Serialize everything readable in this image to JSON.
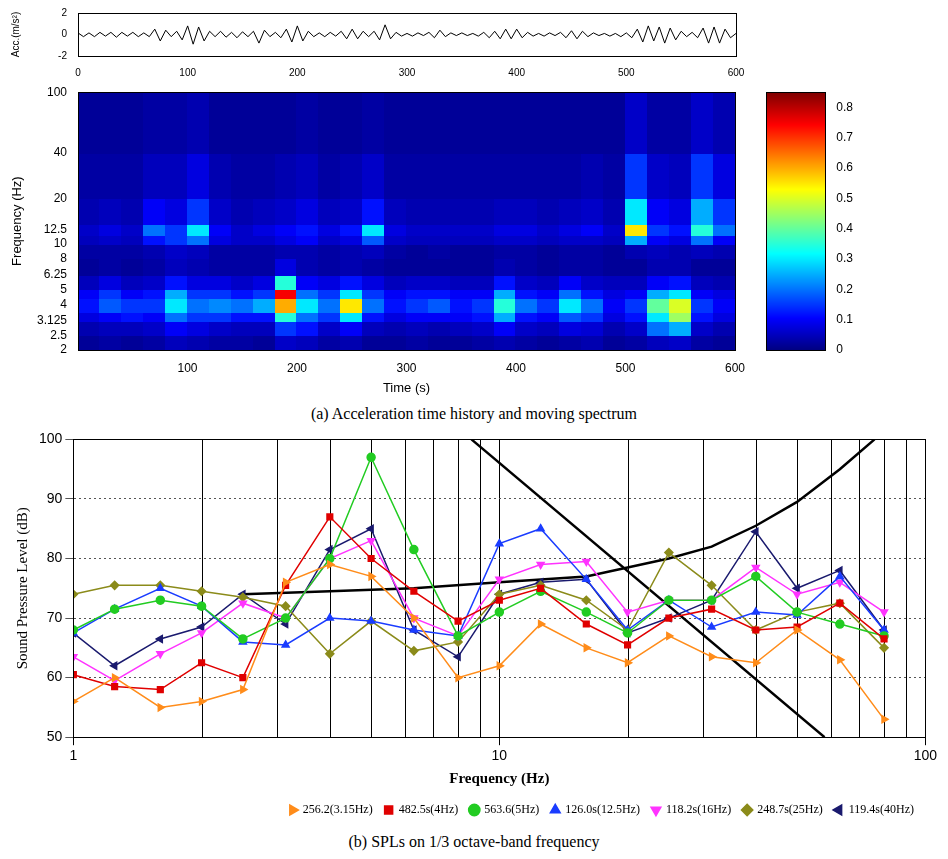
{
  "chart_data": [
    {
      "type": "line",
      "ylabel": "Acc.(m/s²)",
      "color": "#000000",
      "grid": false,
      "xlim": [
        0,
        600
      ],
      "xticks": [
        0,
        100,
        200,
        300,
        400,
        500,
        600
      ],
      "ylim": [
        -2,
        2
      ],
      "yticks": [
        -2,
        0,
        2
      ],
      "x": [
        0,
        5,
        10,
        15,
        20,
        25,
        30,
        35,
        40,
        45,
        50,
        55,
        60,
        65,
        70,
        75,
        80,
        85,
        90,
        95,
        100,
        105,
        110,
        115,
        120,
        125,
        130,
        135,
        140,
        145,
        150,
        155,
        160,
        165,
        170,
        175,
        180,
        185,
        190,
        195,
        200,
        205,
        210,
        215,
        220,
        225,
        230,
        235,
        240,
        245,
        250,
        255,
        260,
        265,
        270,
        275,
        280,
        285,
        290,
        295,
        300,
        305,
        310,
        315,
        320,
        325,
        330,
        335,
        340,
        345,
        350,
        355,
        360,
        365,
        370,
        375,
        380,
        385,
        390,
        395,
        400,
        405,
        410,
        415,
        420,
        425,
        430,
        435,
        440,
        445,
        450,
        455,
        460,
        465,
        470,
        475,
        480,
        485,
        490,
        495,
        500,
        505,
        510,
        515,
        520,
        525,
        530,
        535,
        540,
        545,
        550,
        555,
        560,
        565,
        570,
        575,
        580,
        585,
        590,
        595,
        600
      ],
      "values": [
        0.15,
        -0.2,
        0.15,
        -0.2,
        0.2,
        -0.15,
        0.2,
        -0.25,
        0.2,
        -0.15,
        0.2,
        -0.2,
        0.15,
        -0.2,
        0.5,
        -0.6,
        0.4,
        -0.2,
        0.3,
        -0.5,
        0.8,
        -0.9,
        0.7,
        -0.6,
        0.3,
        -0.2,
        0.3,
        -0.25,
        0.2,
        -0.3,
        0.25,
        -0.2,
        0.3,
        -0.8,
        0.4,
        -0.2,
        0.2,
        -0.3,
        0.5,
        -0.7,
        0.8,
        -0.6,
        0.3,
        -0.2,
        0.15,
        -0.2,
        0.2,
        -0.15,
        0.3,
        -0.4,
        0.5,
        -0.4,
        0.3,
        -0.2,
        0.3,
        -0.5,
        0.9,
        -0.4,
        0.2,
        -0.15,
        0.1,
        -0.15,
        0.15,
        -0.1,
        0.2,
        -0.3,
        0.4,
        -0.2,
        0.15,
        -0.1,
        0.15,
        -0.1,
        0.1,
        -0.15,
        0.2,
        -0.3,
        0.3,
        -0.4,
        0.5,
        -0.4,
        0.5,
        -0.3,
        0.2,
        -0.15,
        0.1,
        -0.15,
        0.15,
        -0.1,
        0.2,
        -0.3,
        0.35,
        -0.4,
        0.3,
        -0.2,
        0.15,
        -0.1,
        0.1,
        -0.15,
        0.1,
        -0.2,
        0.15,
        -0.3,
        0.5,
        -0.7,
        0.8,
        -0.6,
        0.7,
        -0.8,
        0.6,
        -0.5,
        0.3,
        -0.2,
        0.2,
        -0.3,
        0.6,
        -0.8,
        0.7,
        -0.8,
        0.5,
        -0.3,
        0.1
      ]
    },
    {
      "type": "heatmap",
      "title": "(a) Acceleration time history and moving spectrum",
      "xlabel": "Time (s)",
      "ylabel": "Frequency (Hz)",
      "log": "y",
      "grid": false,
      "xlim": [
        0,
        600
      ],
      "xticks": [
        100,
        200,
        300,
        400,
        500,
        600
      ],
      "ylim": [
        2,
        100
      ],
      "yticks": [
        2,
        2.5,
        3.125,
        4,
        5,
        6.25,
        8,
        10,
        12.5,
        20,
        40,
        100
      ],
      "x_edges": [
        0,
        20,
        40,
        60,
        80,
        100,
        120,
        140,
        160,
        180,
        200,
        220,
        240,
        260,
        280,
        300,
        320,
        340,
        360,
        380,
        400,
        420,
        440,
        460,
        480,
        500,
        520,
        540,
        560,
        580,
        600
      ],
      "y_edges": [
        2,
        2.5,
        3.125,
        3.6,
        4.4,
        5,
        6.25,
        8,
        10,
        11.5,
        13.5,
        20,
        40,
        100
      ],
      "cells": [
        [
          0.02,
          0.03,
          0.02,
          0.03,
          0.05,
          0.04,
          0.03,
          0.03,
          0.02,
          0.06,
          0.05,
          0.03,
          0.04,
          0.02,
          0.02,
          0.03,
          0.02,
          0.02,
          0.03,
          0.04,
          0.03,
          0.02,
          0.03,
          0.04,
          0.02,
          0.03,
          0.05,
          0.06,
          0.03,
          0.02
        ],
        [
          0.04,
          0.05,
          0.05,
          0.06,
          0.1,
          0.08,
          0.06,
          0.05,
          0.05,
          0.15,
          0.12,
          0.06,
          0.1,
          0.05,
          0.04,
          0.05,
          0.04,
          0.05,
          0.06,
          0.1,
          0.06,
          0.05,
          0.08,
          0.07,
          0.04,
          0.06,
          0.2,
          0.25,
          0.06,
          0.04
        ],
        [
          0.08,
          0.1,
          0.12,
          0.1,
          0.2,
          0.15,
          0.15,
          0.12,
          0.12,
          0.35,
          0.2,
          0.15,
          0.3,
          0.12,
          0.08,
          0.1,
          0.1,
          0.1,
          0.12,
          0.25,
          0.12,
          0.1,
          0.18,
          0.15,
          0.08,
          0.12,
          0.3,
          0.45,
          0.12,
          0.08
        ],
        [
          0.12,
          0.18,
          0.15,
          0.15,
          0.3,
          0.2,
          0.22,
          0.2,
          0.25,
          0.6,
          0.3,
          0.2,
          0.55,
          0.2,
          0.12,
          0.15,
          0.18,
          0.12,
          0.15,
          0.35,
          0.2,
          0.15,
          0.3,
          0.2,
          0.1,
          0.15,
          0.4,
          0.5,
          0.15,
          0.1
        ],
        [
          0.1,
          0.15,
          0.1,
          0.12,
          0.25,
          0.15,
          0.15,
          0.12,
          0.15,
          0.75,
          0.2,
          0.15,
          0.3,
          0.15,
          0.1,
          0.12,
          0.12,
          0.1,
          0.1,
          0.25,
          0.12,
          0.1,
          0.2,
          0.12,
          0.08,
          0.1,
          0.25,
          0.3,
          0.1,
          0.08
        ],
        [
          0.05,
          0.08,
          0.05,
          0.06,
          0.12,
          0.08,
          0.08,
          0.06,
          0.08,
          0.35,
          0.1,
          0.08,
          0.12,
          0.08,
          0.05,
          0.06,
          0.06,
          0.05,
          0.05,
          0.12,
          0.06,
          0.05,
          0.1,
          0.06,
          0.05,
          0.05,
          0.1,
          0.12,
          0.05,
          0.04
        ],
        [
          0.02,
          0.03,
          0.02,
          0.03,
          0.05,
          0.04,
          0.03,
          0.03,
          0.03,
          0.08,
          0.04,
          0.03,
          0.04,
          0.03,
          0.02,
          0.02,
          0.02,
          0.02,
          0.02,
          0.04,
          0.03,
          0.02,
          0.03,
          0.03,
          0.02,
          0.02,
          0.04,
          0.04,
          0.02,
          0.02
        ],
        [
          0.03,
          0.03,
          0.03,
          0.04,
          0.06,
          0.05,
          0.03,
          0.03,
          0.03,
          0.04,
          0.04,
          0.03,
          0.04,
          0.05,
          0.03,
          0.02,
          0.03,
          0.02,
          0.02,
          0.03,
          0.03,
          0.02,
          0.03,
          0.03,
          0.02,
          0.04,
          0.05,
          0.04,
          0.05,
          0.04
        ],
        [
          0.05,
          0.06,
          0.05,
          0.12,
          0.15,
          0.2,
          0.08,
          0.06,
          0.06,
          0.08,
          0.1,
          0.06,
          0.08,
          0.18,
          0.06,
          0.05,
          0.05,
          0.05,
          0.05,
          0.06,
          0.06,
          0.05,
          0.06,
          0.06,
          0.05,
          0.25,
          0.1,
          0.08,
          0.2,
          0.1
        ],
        [
          0.06,
          0.08,
          0.06,
          0.2,
          0.15,
          0.3,
          0.1,
          0.06,
          0.08,
          0.1,
          0.12,
          0.08,
          0.12,
          0.3,
          0.08,
          0.06,
          0.06,
          0.06,
          0.06,
          0.08,
          0.08,
          0.06,
          0.08,
          0.1,
          0.06,
          0.55,
          0.15,
          0.12,
          0.35,
          0.2
        ],
        [
          0.04,
          0.05,
          0.04,
          0.1,
          0.08,
          0.15,
          0.06,
          0.04,
          0.05,
          0.06,
          0.08,
          0.05,
          0.06,
          0.12,
          0.05,
          0.04,
          0.04,
          0.04,
          0.04,
          0.05,
          0.05,
          0.04,
          0.05,
          0.06,
          0.04,
          0.3,
          0.1,
          0.08,
          0.25,
          0.15
        ],
        [
          0.03,
          0.03,
          0.03,
          0.05,
          0.05,
          0.08,
          0.04,
          0.03,
          0.03,
          0.04,
          0.05,
          0.03,
          0.04,
          0.06,
          0.03,
          0.03,
          0.03,
          0.03,
          0.03,
          0.03,
          0.03,
          0.03,
          0.03,
          0.04,
          0.03,
          0.15,
          0.06,
          0.05,
          0.15,
          0.08
        ],
        [
          0.02,
          0.02,
          0.02,
          0.03,
          0.03,
          0.04,
          0.02,
          0.02,
          0.02,
          0.02,
          0.03,
          0.02,
          0.02,
          0.03,
          0.02,
          0.02,
          0.02,
          0.02,
          0.02,
          0.02,
          0.02,
          0.02,
          0.02,
          0.02,
          0.02,
          0.06,
          0.03,
          0.03,
          0.06,
          0.04
        ]
      ],
      "colorbar": {
        "range": [
          0,
          0.85
        ],
        "ticks": [
          0,
          0.1,
          0.2,
          0.3,
          0.4,
          0.5,
          0.6,
          0.7,
          0.8
        ]
      }
    },
    {
      "type": "line",
      "title": "(b) SPLs on 1/3 octave-band frequency",
      "xlabel": "Frequency (Hz)",
      "ylabel": "Sound Pressure Level (dB)",
      "log": "x",
      "grid": true,
      "legend": "bottom",
      "xlim": [
        1,
        100
      ],
      "xticks": [
        1,
        10,
        100
      ],
      "ylim": [
        50,
        100
      ],
      "yticks": [
        50,
        60,
        70,
        80,
        90,
        100
      ],
      "x": [
        1,
        1.25,
        1.6,
        2,
        2.5,
        3.15,
        4,
        5,
        6.3,
        8,
        10,
        12.5,
        16,
        20,
        25,
        31.5,
        40,
        50,
        63,
        80
      ],
      "series": [
        {
          "name": "256.2(3.15Hz)",
          "color": "#ff8c1a",
          "marker": "triangle-right",
          "line_style": "solid",
          "values": [
            56,
            60,
            55,
            56,
            58,
            76,
            79,
            77,
            70,
            60,
            62,
            69,
            65,
            62.5,
            67,
            63.5,
            62.5,
            68,
            63,
            53
          ]
        },
        {
          "name": "482.5s(4Hz)",
          "color": "#e00000",
          "marker": "square",
          "line_style": "solid",
          "values": [
            60.5,
            58.5,
            58,
            62.5,
            60,
            75.5,
            87,
            80,
            74.5,
            69.5,
            73,
            75,
            69,
            65.5,
            70,
            71.5,
            68,
            68.5,
            72.5,
            66.5
          ]
        },
        {
          "name": "563.6(5Hz)",
          "color": "#22cc22",
          "marker": "circle",
          "line_style": "solid",
          "values": [
            68,
            71.5,
            73,
            72,
            66.5,
            70,
            80,
            97,
            81.5,
            67,
            71,
            74.5,
            71,
            67.5,
            73,
            73,
            77,
            71,
            69,
            67
          ]
        },
        {
          "name": "126.0s(12.5Hz)",
          "color": "#1a3cff",
          "marker": "triangle",
          "line_style": "solid",
          "values": [
            67.5,
            71.5,
            75,
            72,
            66,
            65.5,
            70,
            69.5,
            68,
            67,
            82.5,
            85,
            76.5,
            68,
            73,
            68.5,
            71,
            70.5,
            77,
            68
          ]
        },
        {
          "name": "118.2s(16Hz)",
          "color": "#ff33ff",
          "marker": "triangle-down",
          "line_style": "solid",
          "values": [
            63.5,
            59.5,
            64,
            67.5,
            72.5,
            70,
            80,
            83,
            70,
            67,
            76.5,
            79,
            79.5,
            71,
            73,
            73,
            78.5,
            74,
            76,
            71
          ]
        },
        {
          "name": "248.7s(25Hz)",
          "color": "#8b8b1a",
          "marker": "diamond",
          "line_style": "solid",
          "values": [
            74,
            75.5,
            75.5,
            74.5,
            73.5,
            72,
            64,
            69.5,
            64.5,
            66,
            74,
            75.5,
            73,
            68,
            81,
            75.5,
            68,
            71,
            72.5,
            65
          ]
        },
        {
          "name": "119.4s(40Hz)",
          "color": "#1a1a6e",
          "marker": "triangle-left",
          "line_style": "solid",
          "values": [
            67.5,
            62,
            66.5,
            68.5,
            74,
            69,
            81.5,
            85,
            68,
            63.5,
            74,
            76,
            76.5,
            67.5,
            70,
            73,
            84.5,
            75,
            78,
            68
          ]
        },
        {
          "color": "#000000",
          "marker": "none",
          "line_style": "solid",
          "x": [
            2.5,
            4,
            6.3,
            10,
            16,
            20,
            25,
            31.5,
            40,
            50,
            63,
            76
          ],
          "values": [
            74,
            74.5,
            75,
            76,
            77,
            78.5,
            80,
            82,
            85.5,
            89.5,
            95,
            100
          ]
        },
        {
          "color": "#000000",
          "marker": "none",
          "line_style": "solid",
          "x": [
            8.6,
            58
          ],
          "values": [
            100,
            50
          ]
        }
      ]
    }
  ]
}
